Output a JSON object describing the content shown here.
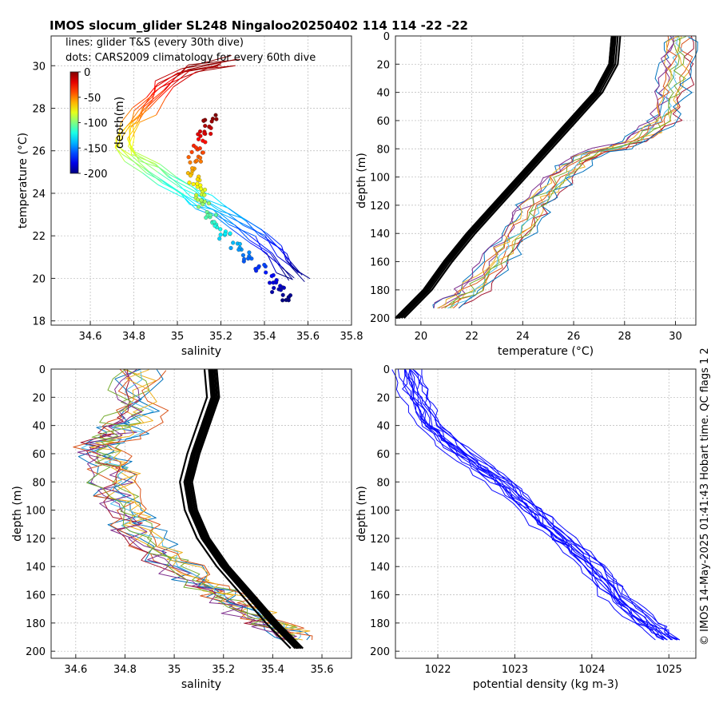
{
  "title": "IMOS slocum_glider SL248 Ningaloo20250402 114  114  -22  -22",
  "side_note": "© IMOS 14-May-2025 01:41:43 Hobart time. QC flags 1  2",
  "chart_data": [
    {
      "id": "ts",
      "type": "scatter",
      "xlabel": "salinity",
      "ylabel": "temperature (°C)",
      "xlim": [
        34.42,
        35.8
      ],
      "ylim": [
        17.8,
        31.4
      ],
      "xticks": [
        34.6,
        34.8,
        35,
        35.2,
        35.4,
        35.6,
        35.8
      ],
      "xtick_labels": [
        "34.6",
        "34.8",
        "35",
        "35.2",
        "35.4",
        "35.6",
        "35.8"
      ],
      "yticks": [
        18,
        20,
        22,
        24,
        26,
        28,
        30
      ],
      "ytick_labels": [
        "18",
        "20",
        "22",
        "24",
        "26",
        "28",
        "30"
      ],
      "grid": true,
      "legend_lines": [
        "lines: glider T&S (every 30th dive)",
        "dots: CARS2009 climatology for every 60th dive"
      ],
      "colorbar": {
        "label": "depth(m)",
        "ticks": [
          0,
          -50,
          -100,
          -150,
          -200
        ],
        "tick_labels": [
          "0",
          "-50",
          "-100",
          "-150",
          "-200"
        ],
        "range": [
          -200,
          0
        ],
        "colormap": "jet"
      },
      "glider_ts_profile": [
        [
          35.25,
          30.2
        ],
        [
          35.05,
          29.8
        ],
        [
          34.95,
          29.2
        ],
        [
          34.9,
          28.6
        ],
        [
          34.85,
          28.0
        ],
        [
          34.8,
          27.4
        ],
        [
          34.77,
          26.9
        ],
        [
          34.76,
          26.3
        ],
        [
          34.8,
          25.8
        ],
        [
          34.88,
          25.2
        ],
        [
          34.97,
          24.6
        ],
        [
          35.06,
          24.0
        ],
        [
          35.12,
          23.6
        ],
        [
          35.2,
          23.2
        ],
        [
          35.3,
          22.6
        ],
        [
          35.38,
          22.0
        ],
        [
          35.45,
          21.3
        ],
        [
          35.5,
          20.6
        ],
        [
          35.55,
          20.1
        ]
      ],
      "climatology_ts": [
        [
          35.15,
          27.6
        ],
        [
          35.13,
          27.0
        ],
        [
          35.11,
          26.6
        ],
        [
          35.09,
          26.1
        ],
        [
          35.08,
          25.6
        ],
        [
          35.07,
          25.0
        ],
        [
          35.08,
          24.5
        ],
        [
          35.1,
          24.0
        ],
        [
          35.12,
          23.5
        ],
        [
          35.15,
          23.0
        ],
        [
          35.18,
          22.5
        ],
        [
          35.22,
          22.0
        ],
        [
          35.27,
          21.5
        ],
        [
          35.32,
          21.0
        ],
        [
          35.38,
          20.5
        ],
        [
          35.43,
          20.0
        ],
        [
          35.46,
          19.5
        ],
        [
          35.5,
          19.0
        ]
      ]
    },
    {
      "id": "temp",
      "type": "line",
      "xlabel": "temperature (°C)",
      "ylabel": "depth (m)",
      "xlim": [
        19,
        30.8
      ],
      "ylim": [
        0,
        205
      ],
      "xticks": [
        20,
        22,
        24,
        26,
        28,
        30
      ],
      "xtick_labels": [
        "20",
        "22",
        "24",
        "26",
        "28",
        "30"
      ],
      "yticks": [
        0,
        20,
        40,
        60,
        80,
        100,
        120,
        140,
        160,
        180,
        200
      ],
      "ytick_labels": [
        "0",
        "20",
        "40",
        "60",
        "80",
        "100",
        "120",
        "140",
        "160",
        "180",
        "200"
      ],
      "grid": true,
      "y_reversed": true,
      "glider_profile": [
        [
          30.2,
          0
        ],
        [
          30.1,
          20
        ],
        [
          29.9,
          40
        ],
        [
          29.5,
          60
        ],
        [
          28.5,
          75
        ],
        [
          26.5,
          85
        ],
        [
          25.5,
          100
        ],
        [
          24.5,
          120
        ],
        [
          23.8,
          140
        ],
        [
          23.0,
          160
        ],
        [
          22.0,
          180
        ],
        [
          21.0,
          193
        ]
      ],
      "climatology_profile": [
        [
          27.7,
          0
        ],
        [
          27.6,
          20
        ],
        [
          27.0,
          40
        ],
        [
          26.0,
          60
        ],
        [
          25.0,
          80
        ],
        [
          24.0,
          100
        ],
        [
          23.0,
          120
        ],
        [
          22.0,
          140
        ],
        [
          21.1,
          160
        ],
        [
          20.3,
          180
        ],
        [
          19.2,
          200
        ]
      ]
    },
    {
      "id": "sal",
      "type": "line",
      "xlabel": "salinity",
      "ylabel": "depth (m)",
      "xlim": [
        34.5,
        35.72
      ],
      "ylim": [
        0,
        205
      ],
      "xticks": [
        34.6,
        34.8,
        35,
        35.2,
        35.4,
        35.6
      ],
      "xtick_labels": [
        "34.6",
        "34.8",
        "35",
        "35.2",
        "35.4",
        "35.6"
      ],
      "yticks": [
        0,
        20,
        40,
        60,
        80,
        100,
        120,
        140,
        160,
        180,
        200
      ],
      "ytick_labels": [
        "0",
        "20",
        "40",
        "60",
        "80",
        "100",
        "120",
        "140",
        "160",
        "180",
        "200"
      ],
      "grid": true,
      "y_reversed": true,
      "glider_profile": [
        [
          34.85,
          0
        ],
        [
          34.85,
          30
        ],
        [
          34.8,
          45
        ],
        [
          34.7,
          55
        ],
        [
          34.75,
          70
        ],
        [
          34.8,
          90
        ],
        [
          34.85,
          110
        ],
        [
          34.95,
          130
        ],
        [
          35.1,
          150
        ],
        [
          35.25,
          165
        ],
        [
          35.4,
          180
        ],
        [
          35.5,
          192
        ]
      ],
      "climatology_profile": [
        [
          35.15,
          0
        ],
        [
          35.16,
          20
        ],
        [
          35.12,
          40
        ],
        [
          35.08,
          60
        ],
        [
          35.05,
          80
        ],
        [
          35.07,
          100
        ],
        [
          35.12,
          120
        ],
        [
          35.2,
          140
        ],
        [
          35.3,
          160
        ],
        [
          35.4,
          180
        ],
        [
          35.5,
          198
        ]
      ]
    },
    {
      "id": "dens",
      "type": "line",
      "xlabel": "potential density (kg m-3)",
      "ylabel": "depth (m)",
      "xlim": [
        1021.45,
        1025.35
      ],
      "ylim": [
        0,
        205
      ],
      "xticks": [
        1022,
        1023,
        1024,
        1025
      ],
      "xtick_labels": [
        "1022",
        "1023",
        "1024",
        "1025"
      ],
      "yticks": [
        0,
        20,
        40,
        60,
        80,
        100,
        120,
        140,
        160,
        180,
        200
      ],
      "ytick_labels": [
        "0",
        "20",
        "40",
        "60",
        "80",
        "100",
        "120",
        "140",
        "160",
        "180",
        "200"
      ],
      "grid": true,
      "y_reversed": true,
      "glider_profile": [
        [
          1021.6,
          0
        ],
        [
          1021.7,
          20
        ],
        [
          1021.9,
          40
        ],
        [
          1022.3,
          60
        ],
        [
          1022.8,
          80
        ],
        [
          1023.2,
          100
        ],
        [
          1023.6,
          120
        ],
        [
          1024.0,
          140
        ],
        [
          1024.3,
          160
        ],
        [
          1024.7,
          180
        ],
        [
          1025.0,
          192
        ]
      ]
    }
  ]
}
